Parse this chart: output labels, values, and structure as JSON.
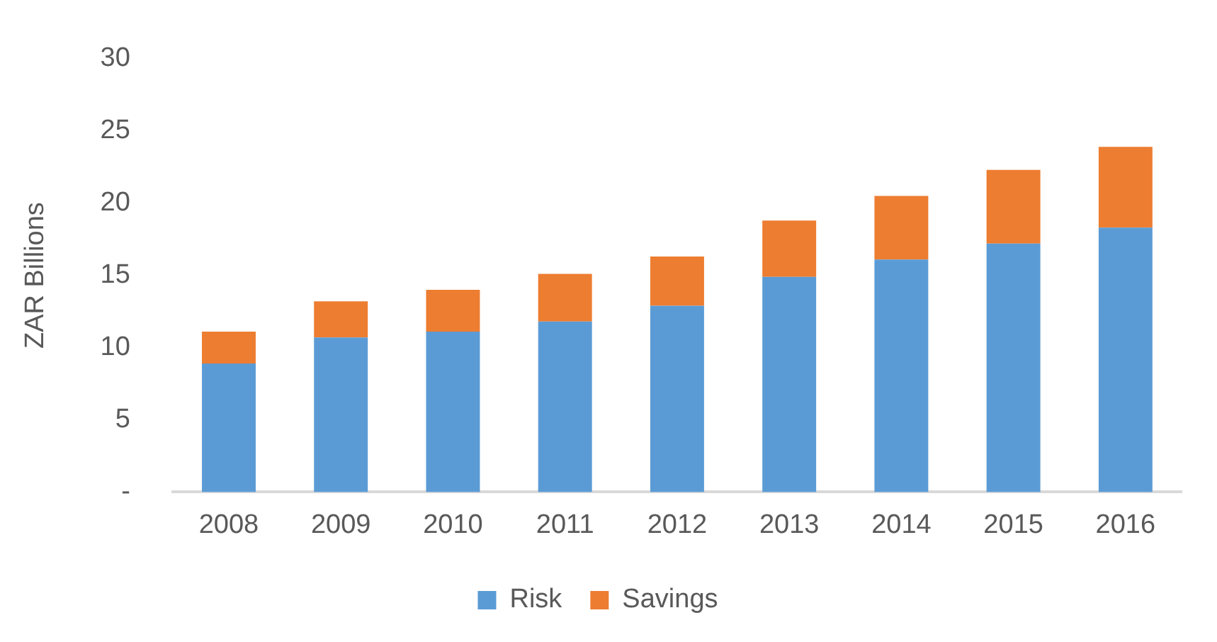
{
  "chart_data": {
    "type": "bar",
    "stacked": true,
    "ylabel": "ZAR Billions",
    "categories": [
      "2008",
      "2009",
      "2010",
      "2011",
      "2012",
      "2013",
      "2014",
      "2015",
      "2016"
    ],
    "series": [
      {
        "name": "Risk",
        "color": "#5b9bd5",
        "values": [
          8.9,
          10.7,
          11.1,
          11.8,
          12.9,
          14.9,
          16.1,
          17.2,
          18.3
        ]
      },
      {
        "name": "Savings",
        "color": "#ed7d31",
        "values": [
          2.2,
          2.5,
          2.9,
          3.3,
          3.4,
          3.9,
          4.4,
          5.1,
          5.6
        ]
      }
    ],
    "ylim": [
      0,
      30
    ],
    "yticks": [
      {
        "value": 0,
        "label": "-"
      },
      5,
      10,
      15,
      20,
      25,
      30
    ],
    "grid": false,
    "legend": "bottom"
  }
}
